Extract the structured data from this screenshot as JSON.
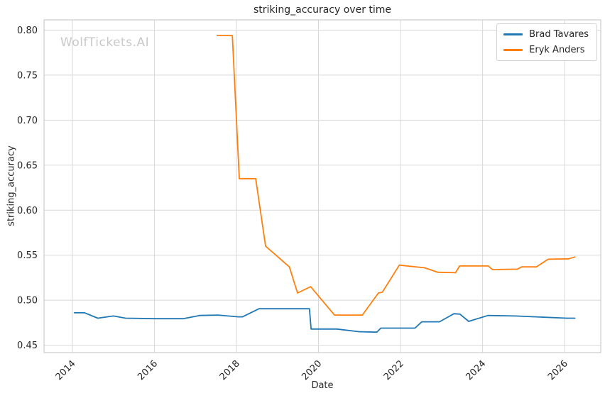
{
  "chart_data": {
    "type": "line",
    "title": "striking_accuracy over time",
    "xlabel": "Date",
    "ylabel": "striking_accuracy",
    "watermark": "WolfTickets.AI",
    "grid": true,
    "legend_position": "upper right",
    "xlim": [
      2013.31,
      2026.88
    ],
    "ylim": [
      0.4418,
      0.8114
    ],
    "x_tick_values": [
      2014,
      2016,
      2018,
      2020,
      2022,
      2024,
      2026
    ],
    "x_tick_labels": [
      "2014",
      "2016",
      "2018",
      "2020",
      "2022",
      "2024",
      "2026"
    ],
    "y_tick_values": [
      0.45,
      0.5,
      0.55,
      0.6,
      0.65,
      0.7,
      0.75,
      0.8
    ],
    "y_tick_labels": [
      "0.45",
      "0.50",
      "0.55",
      "0.60",
      "0.65",
      "0.70",
      "0.75",
      "0.80"
    ],
    "colors": {
      "grid": "#d8d8d8",
      "spine": "#cbcbcb",
      "text": "#262626",
      "watermark": "#c9c9c9"
    },
    "series": [
      {
        "name": "Brad Tavares",
        "color": "#1f77b4",
        "points": [
          [
            2014.05,
            0.486
          ],
          [
            2014.3,
            0.486
          ],
          [
            2014.62,
            0.48
          ],
          [
            2015.0,
            0.4825
          ],
          [
            2015.3,
            0.48
          ],
          [
            2016.0,
            0.4795
          ],
          [
            2016.7,
            0.4795
          ],
          [
            2017.1,
            0.483
          ],
          [
            2017.55,
            0.4835
          ],
          [
            2018.05,
            0.4815
          ],
          [
            2018.15,
            0.4815
          ],
          [
            2018.55,
            0.4905
          ],
          [
            2019.78,
            0.4905
          ],
          [
            2019.82,
            0.468
          ],
          [
            2020.45,
            0.468
          ],
          [
            2021.0,
            0.465
          ],
          [
            2021.42,
            0.4645
          ],
          [
            2021.52,
            0.469
          ],
          [
            2022.35,
            0.469
          ],
          [
            2022.52,
            0.476
          ],
          [
            2022.95,
            0.476
          ],
          [
            2023.3,
            0.485
          ],
          [
            2023.45,
            0.4845
          ],
          [
            2023.66,
            0.4765
          ],
          [
            2024.13,
            0.483
          ],
          [
            2024.8,
            0.4825
          ],
          [
            2025.3,
            0.4815
          ],
          [
            2026.05,
            0.48
          ],
          [
            2026.25,
            0.48
          ]
        ]
      },
      {
        "name": "Eryk Anders",
        "color": "#ff7f0e",
        "points": [
          [
            2017.53,
            0.794
          ],
          [
            2017.9,
            0.794
          ],
          [
            2018.07,
            0.635
          ],
          [
            2018.47,
            0.635
          ],
          [
            2018.71,
            0.56
          ],
          [
            2019.29,
            0.537
          ],
          [
            2019.49,
            0.508
          ],
          [
            2019.81,
            0.515
          ],
          [
            2020.39,
            0.4835
          ],
          [
            2021.07,
            0.4835
          ],
          [
            2021.46,
            0.508
          ],
          [
            2021.56,
            0.509
          ],
          [
            2021.97,
            0.539
          ],
          [
            2022.59,
            0.536
          ],
          [
            2022.91,
            0.531
          ],
          [
            2023.34,
            0.5305
          ],
          [
            2023.44,
            0.538
          ],
          [
            2024.14,
            0.538
          ],
          [
            2024.24,
            0.534
          ],
          [
            2024.85,
            0.5345
          ],
          [
            2024.95,
            0.537
          ],
          [
            2025.31,
            0.537
          ],
          [
            2025.6,
            0.5455
          ],
          [
            2026.1,
            0.546
          ],
          [
            2026.25,
            0.548
          ]
        ]
      }
    ]
  }
}
